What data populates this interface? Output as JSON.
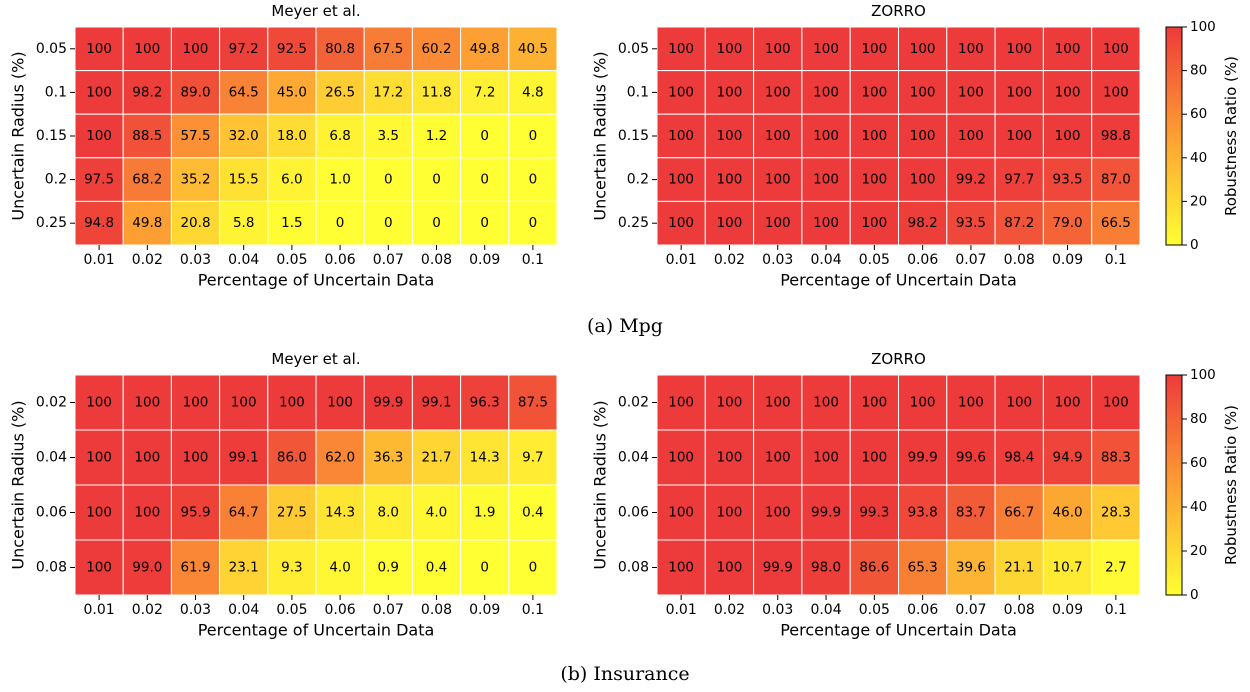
{
  "figure": {
    "captions": [
      "(a) Mpg",
      "(b) Insurance"
    ]
  },
  "colorbar": {
    "label": "Robustness Ratio (%)",
    "ticks": [
      "0",
      "20",
      "40",
      "60",
      "80",
      "100"
    ],
    "low_color": "#ffff33",
    "mid_color": "#fd9f33",
    "high_color": "#ed3a3a"
  },
  "chart_data": [
    {
      "type": "heatmap",
      "title": "Meyer et al.",
      "xlabel": "Percentage of Uncertain Data",
      "ylabel": "Uncertain Radius (%)",
      "x": [
        "0.01",
        "0.02",
        "0.03",
        "0.04",
        "0.05",
        "0.06",
        "0.07",
        "0.08",
        "0.09",
        "0.1"
      ],
      "y": [
        "0.05",
        "0.1",
        "0.15",
        "0.2",
        "0.25"
      ],
      "labels": [
        [
          "100",
          "100",
          "100",
          "97.2",
          "92.5",
          "80.8",
          "67.5",
          "60.2",
          "49.8",
          "40.5"
        ],
        [
          "100",
          "98.2",
          "89.0",
          "64.5",
          "45.0",
          "26.5",
          "17.2",
          "11.8",
          "7.2",
          "4.8"
        ],
        [
          "100",
          "88.5",
          "57.5",
          "32.0",
          "18.0",
          "6.8",
          "3.5",
          "1.2",
          "0",
          "0"
        ],
        [
          "97.5",
          "68.2",
          "35.2",
          "15.5",
          "6.0",
          "1.0",
          "0",
          "0",
          "0",
          "0"
        ],
        [
          "94.8",
          "49.8",
          "20.8",
          "5.8",
          "1.5",
          "0",
          "0",
          "0",
          "0",
          "0"
        ]
      ],
      "vmin": 0,
      "vmax": 100
    },
    {
      "type": "heatmap",
      "title": "ZORRO",
      "xlabel": "Percentage of Uncertain Data",
      "ylabel": "Uncertain Radius (%)",
      "x": [
        "0.01",
        "0.02",
        "0.03",
        "0.04",
        "0.05",
        "0.06",
        "0.07",
        "0.08",
        "0.09",
        "0.1"
      ],
      "y": [
        "0.05",
        "0.1",
        "0.15",
        "0.2",
        "0.25"
      ],
      "labels": [
        [
          "100",
          "100",
          "100",
          "100",
          "100",
          "100",
          "100",
          "100",
          "100",
          "100"
        ],
        [
          "100",
          "100",
          "100",
          "100",
          "100",
          "100",
          "100",
          "100",
          "100",
          "100"
        ],
        [
          "100",
          "100",
          "100",
          "100",
          "100",
          "100",
          "100",
          "100",
          "100",
          "98.8"
        ],
        [
          "100",
          "100",
          "100",
          "100",
          "100",
          "100",
          "99.2",
          "97.7",
          "93.5",
          "87.0"
        ],
        [
          "100",
          "100",
          "100",
          "100",
          "100",
          "98.2",
          "93.5",
          "87.2",
          "79.0",
          "66.5"
        ]
      ],
      "vmin": 0,
      "vmax": 100
    },
    {
      "type": "heatmap",
      "title": "Meyer et al.",
      "xlabel": "Percentage of Uncertain Data",
      "ylabel": "Uncertain Radius (%)",
      "x": [
        "0.01",
        "0.02",
        "0.03",
        "0.04",
        "0.05",
        "0.06",
        "0.07",
        "0.08",
        "0.09",
        "0.1"
      ],
      "y": [
        "0.02",
        "0.04",
        "0.06",
        "0.08"
      ],
      "labels": [
        [
          "100",
          "100",
          "100",
          "100",
          "100",
          "100",
          "99.9",
          "99.1",
          "96.3",
          "87.5"
        ],
        [
          "100",
          "100",
          "100",
          "99.1",
          "86.0",
          "62.0",
          "36.3",
          "21.7",
          "14.3",
          "9.7"
        ],
        [
          "100",
          "100",
          "95.9",
          "64.7",
          "27.5",
          "14.3",
          "8.0",
          "4.0",
          "1.9",
          "0.4"
        ],
        [
          "100",
          "99.0",
          "61.9",
          "23.1",
          "9.3",
          "4.0",
          "0.9",
          "0.4",
          "0",
          "0"
        ]
      ],
      "vmin": 0,
      "vmax": 100
    },
    {
      "type": "heatmap",
      "title": "ZORRO",
      "xlabel": "Percentage of Uncertain Data",
      "ylabel": "Uncertain Radius (%)",
      "x": [
        "0.01",
        "0.02",
        "0.03",
        "0.04",
        "0.05",
        "0.06",
        "0.07",
        "0.08",
        "0.09",
        "0.1"
      ],
      "y": [
        "0.02",
        "0.04",
        "0.06",
        "0.08"
      ],
      "labels": [
        [
          "100",
          "100",
          "100",
          "100",
          "100",
          "100",
          "100",
          "100",
          "100",
          "100"
        ],
        [
          "100",
          "100",
          "100",
          "100",
          "100",
          "99.9",
          "99.6",
          "98.4",
          "94.9",
          "88.3"
        ],
        [
          "100",
          "100",
          "100",
          "99.9",
          "99.3",
          "93.8",
          "83.7",
          "66.7",
          "46.0",
          "28.3"
        ],
        [
          "100",
          "100",
          "99.9",
          "98.0",
          "86.6",
          "65.3",
          "39.6",
          "21.1",
          "10.7",
          "2.7"
        ]
      ],
      "vmin": 0,
      "vmax": 100
    }
  ]
}
